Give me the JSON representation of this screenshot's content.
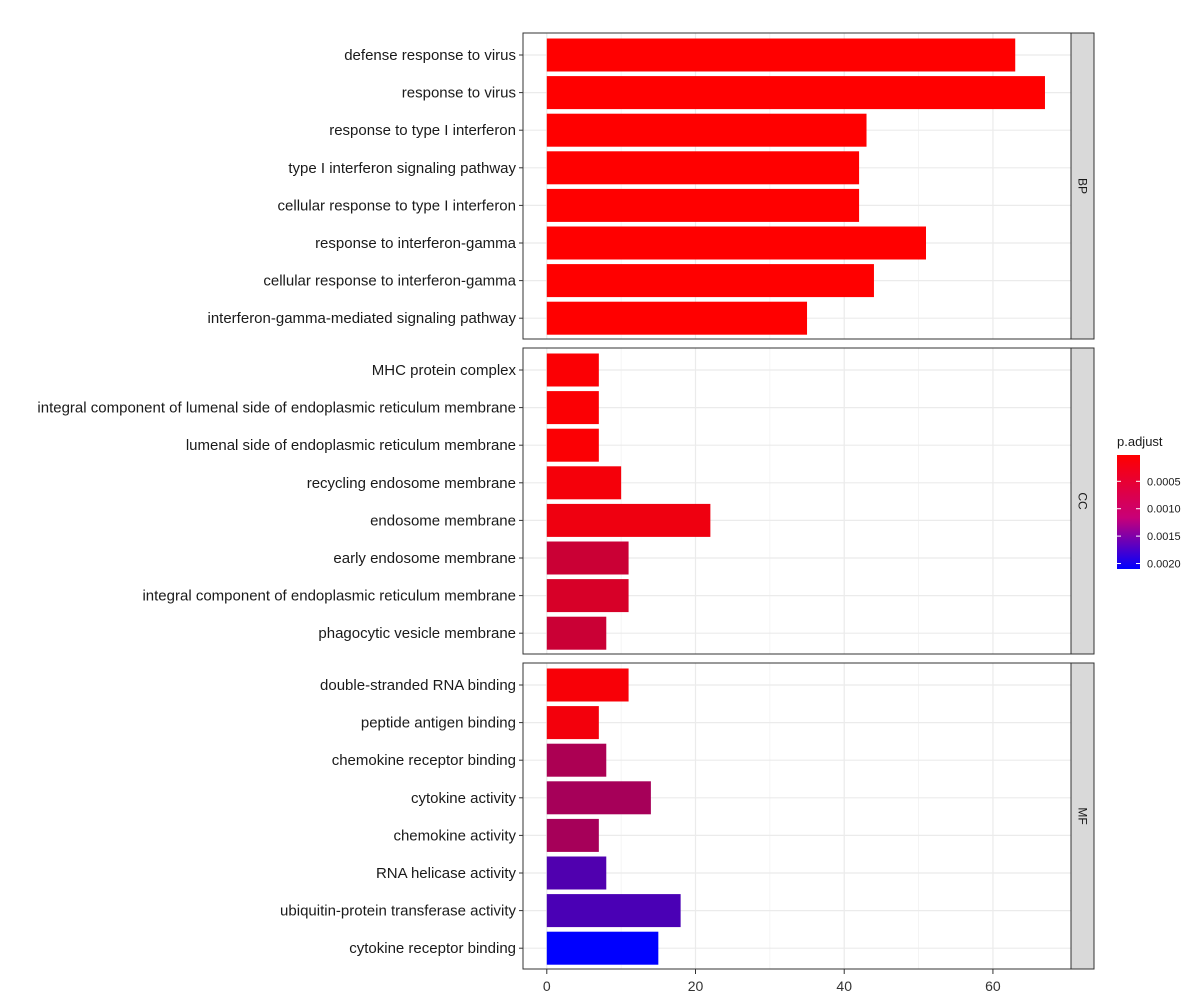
{
  "chart_data": {
    "type": "bar",
    "orientation": "horizontal",
    "title": "",
    "xlabel": "",
    "ylabel": "",
    "xlim": [
      -3.2,
      70.5
    ],
    "x_ticks": [
      0,
      20,
      40,
      60
    ],
    "grid": true,
    "legend_position": "right",
    "legend": {
      "title": "p.adjust",
      "ticks": [
        {
          "value": 0.0005,
          "label": "0.0005"
        },
        {
          "value": 0.001,
          "label": "0.0010"
        },
        {
          "value": 0.0015,
          "label": "0.0015"
        },
        {
          "value": 0.002,
          "label": "0.0020"
        }
      ],
      "range": [
        2e-05,
        0.0021
      ],
      "color_low": "#ff0000",
      "color_high": "#0000ff"
    },
    "facets": [
      {
        "name": "BP",
        "categories": [
          {
            "label": "defense response to virus",
            "value": 63,
            "p_adjust": 2e-05
          },
          {
            "label": "response to virus",
            "value": 67,
            "p_adjust": 2e-05
          },
          {
            "label": "response to type I interferon",
            "value": 43,
            "p_adjust": 2e-05
          },
          {
            "label": "type I interferon signaling pathway",
            "value": 42,
            "p_adjust": 2e-05
          },
          {
            "label": "cellular response to type I interferon",
            "value": 42,
            "p_adjust": 2e-05
          },
          {
            "label": "response to interferon-gamma",
            "value": 51,
            "p_adjust": 2e-05
          },
          {
            "label": "cellular response to interferon-gamma",
            "value": 44,
            "p_adjust": 2e-05
          },
          {
            "label": "interferon-gamma-mediated signaling pathway",
            "value": 35,
            "p_adjust": 2e-05
          }
        ]
      },
      {
        "name": "CC",
        "categories": [
          {
            "label": "MHC protein complex",
            "value": 7,
            "p_adjust": 5e-05
          },
          {
            "label": "integral component of lumenal side of endoplasmic reticulum membrane",
            "value": 7,
            "p_adjust": 5e-05
          },
          {
            "label": "lumenal side of endoplasmic reticulum membrane",
            "value": 7,
            "p_adjust": 5e-05
          },
          {
            "label": "recycling endosome membrane",
            "value": 10,
            "p_adjust": 0.0001
          },
          {
            "label": "endosome membrane",
            "value": 22,
            "p_adjust": 0.00015
          },
          {
            "label": "early endosome membrane",
            "value": 11,
            "p_adjust": 0.00045
          },
          {
            "label": "integral component of endoplasmic reticulum membrane",
            "value": 11,
            "p_adjust": 0.00035
          },
          {
            "label": "phagocytic vesicle membrane",
            "value": 8,
            "p_adjust": 0.00045
          }
        ]
      },
      {
        "name": "MF",
        "categories": [
          {
            "label": "double-stranded RNA binding",
            "value": 11,
            "p_adjust": 8e-05
          },
          {
            "label": "peptide antigen binding",
            "value": 7,
            "p_adjust": 0.00012
          },
          {
            "label": "chemokine receptor binding",
            "value": 8,
            "p_adjust": 0.0007
          },
          {
            "label": "cytokine activity",
            "value": 14,
            "p_adjust": 0.00075
          },
          {
            "label": "chemokine activity",
            "value": 7,
            "p_adjust": 0.00075
          },
          {
            "label": "RNA helicase activity",
            "value": 8,
            "p_adjust": 0.00145
          },
          {
            "label": "ubiquitin-protein transferase activity",
            "value": 18,
            "p_adjust": 0.0015
          },
          {
            "label": "cytokine receptor binding",
            "value": 15,
            "p_adjust": 0.0021
          }
        ]
      }
    ]
  }
}
